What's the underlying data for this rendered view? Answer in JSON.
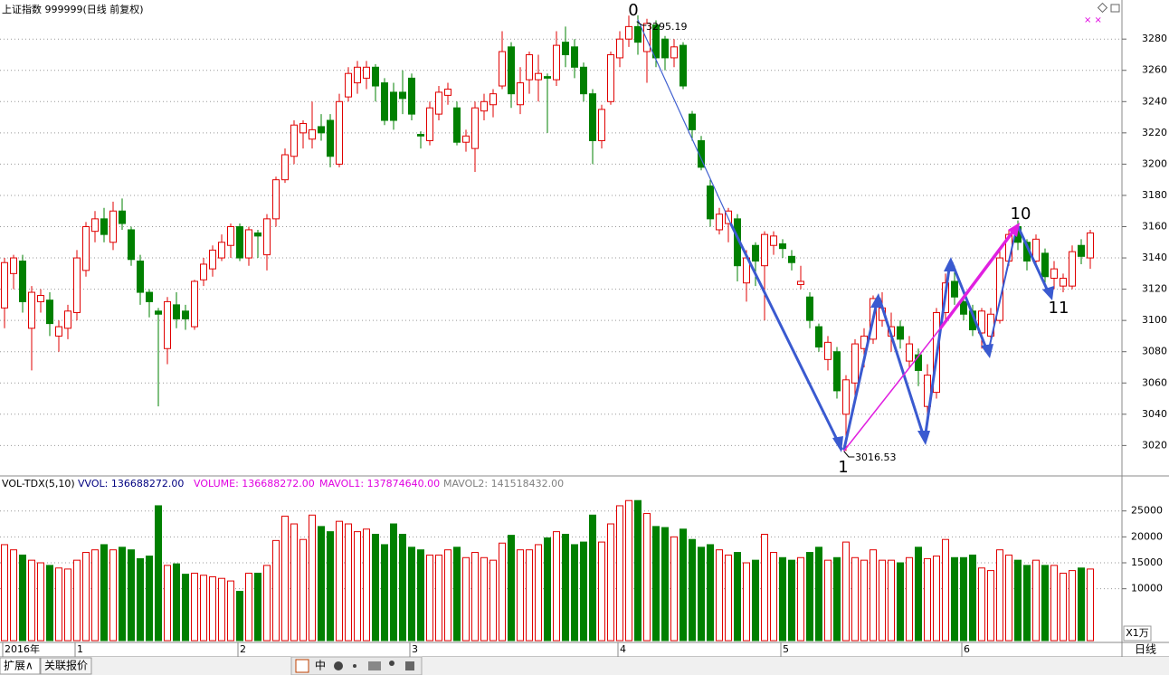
{
  "chart_data": {
    "type": "candlestick",
    "title": "上证指数 999999(日线 前复权)",
    "up_color": "#e00000",
    "down_color": "#008000",
    "grid": true,
    "ylim": [
      3004,
      3305
    ],
    "yticks": [
      3020,
      3040,
      3060,
      3080,
      3100,
      3120,
      3140,
      3160,
      3180,
      3200,
      3220,
      3240,
      3260,
      3280
    ],
    "categories": [
      "2016年",
      null,
      null,
      null,
      null,
      null,
      null,
      null,
      "1",
      null,
      null,
      null,
      null,
      null,
      null,
      null,
      null,
      null,
      null,
      null,
      null,
      null,
      null,
      null,
      null,
      null,
      "2",
      null,
      null,
      null,
      null,
      null,
      null,
      null,
      null,
      null,
      null,
      null,
      null,
      null,
      null,
      null,
      null,
      null,
      null,
      "3",
      null,
      null,
      null,
      null,
      null,
      null,
      null,
      null,
      null,
      null,
      null,
      null,
      null,
      null,
      null,
      null,
      null,
      null,
      null,
      null,
      null,
      null,
      "4",
      null,
      null,
      null,
      null,
      null,
      null,
      null,
      null,
      null,
      null,
      null,
      null,
      null,
      null,
      null,
      null,
      null,
      "5",
      null,
      null,
      null,
      null,
      null,
      null,
      null,
      null,
      null,
      null,
      null,
      null,
      null,
      null,
      null,
      null,
      null,
      null,
      null,
      "6",
      null,
      null,
      null,
      null,
      null,
      null,
      null,
      null,
      null,
      null,
      null,
      null,
      null,
      null
    ],
    "candles": [
      [
        3108,
        3140,
        3095,
        3137
      ],
      [
        3130,
        3142,
        3120,
        3140
      ],
      [
        3138,
        3142,
        3105,
        3112
      ],
      [
        3095,
        3122,
        3068,
        3118
      ],
      [
        3112,
        3120,
        3105,
        3116
      ],
      [
        3113,
        3118,
        3090,
        3098
      ],
      [
        3090,
        3100,
        3080,
        3096
      ],
      [
        3095,
        3110,
        3088,
        3106
      ],
      [
        3105,
        3145,
        3100,
        3140
      ],
      [
        3132,
        3163,
        3128,
        3160
      ],
      [
        3157,
        3170,
        3150,
        3165
      ],
      [
        3165,
        3172,
        3150,
        3155
      ],
      [
        3150,
        3176,
        3145,
        3170
      ],
      [
        3170,
        3178,
        3158,
        3162
      ],
      [
        3158,
        3160,
        3135,
        3139
      ],
      [
        3138,
        3142,
        3110,
        3118
      ],
      [
        3118,
        3120,
        3102,
        3112
      ],
      [
        3106,
        3108,
        3045,
        3104
      ],
      [
        3082,
        3115,
        3072,
        3112
      ],
      [
        3110,
        3118,
        3095,
        3101
      ],
      [
        3106,
        3110,
        3094,
        3101
      ],
      [
        3096,
        3126,
        3094,
        3125
      ],
      [
        3126,
        3140,
        3122,
        3136
      ],
      [
        3133,
        3148,
        3128,
        3145
      ],
      [
        3140,
        3155,
        3138,
        3150
      ],
      [
        3148,
        3162,
        3140,
        3160
      ],
      [
        3160,
        3162,
        3138,
        3140
      ],
      [
        3140,
        3160,
        3135,
        3158
      ],
      [
        3156,
        3158,
        3140,
        3154
      ],
      [
        3142,
        3168,
        3132,
        3165
      ],
      [
        3165,
        3192,
        3160,
        3190
      ],
      [
        3190,
        3210,
        3188,
        3206
      ],
      [
        3205,
        3228,
        3200,
        3225
      ],
      [
        3220,
        3228,
        3210,
        3226
      ],
      [
        3216,
        3240,
        3210,
        3222
      ],
      [
        3224,
        3232,
        3215,
        3220
      ],
      [
        3228,
        3232,
        3198,
        3205
      ],
      [
        3200,
        3245,
        3198,
        3240
      ],
      [
        3243,
        3262,
        3240,
        3258
      ],
      [
        3252,
        3266,
        3245,
        3262
      ],
      [
        3255,
        3266,
        3248,
        3262
      ],
      [
        3262,
        3264,
        3240,
        3250
      ],
      [
        3252,
        3255,
        3225,
        3228
      ],
      [
        3246,
        3252,
        3222,
        3228
      ],
      [
        3246,
        3260,
        3232,
        3242
      ],
      [
        3255,
        3258,
        3228,
        3232
      ],
      [
        3219,
        3221,
        3210,
        3218
      ],
      [
        3215,
        3240,
        3212,
        3236
      ],
      [
        3232,
        3250,
        3228,
        3246
      ],
      [
        3244,
        3252,
        3238,
        3248
      ],
      [
        3236,
        3240,
        3212,
        3214
      ],
      [
        3214,
        3222,
        3208,
        3218
      ],
      [
        3210,
        3240,
        3195,
        3236
      ],
      [
        3234,
        3245,
        3228,
        3240
      ],
      [
        3238,
        3248,
        3230,
        3245
      ],
      [
        3250,
        3285,
        3248,
        3272
      ],
      [
        3275,
        3278,
        3236,
        3245
      ],
      [
        3238,
        3262,
        3232,
        3252
      ],
      [
        3254,
        3272,
        3245,
        3270
      ],
      [
        3254,
        3270,
        3240,
        3258
      ],
      [
        3256,
        3258,
        3220,
        3255
      ],
      [
        3254,
        3285,
        3250,
        3276
      ],
      [
        3278,
        3288,
        3262,
        3270
      ],
      [
        3275,
        3280,
        3255,
        3262
      ],
      [
        3262,
        3265,
        3240,
        3245
      ],
      [
        3245,
        3248,
        3200,
        3215
      ],
      [
        3215,
        3238,
        3210,
        3235
      ],
      [
        3240,
        3272,
        3238,
        3270
      ],
      [
        3268,
        3285,
        3262,
        3280
      ],
      [
        3280,
        3295,
        3275,
        3288
      ],
      [
        3288,
        3295.19,
        3270,
        3278
      ],
      [
        3272,
        3293,
        3252,
        3290
      ],
      [
        3289,
        3292,
        3262,
        3268
      ],
      [
        3280,
        3282,
        3260,
        3268
      ],
      [
        3268,
        3280,
        3262,
        3275
      ],
      [
        3276,
        3278,
        3248,
        3250
      ],
      [
        3232,
        3234,
        3215,
        3222
      ],
      [
        3215,
        3218,
        3196,
        3198
      ],
      [
        3186,
        3190,
        3160,
        3165
      ],
      [
        3158,
        3172,
        3155,
        3168
      ],
      [
        3162,
        3172,
        3150,
        3170
      ],
      [
        3165,
        3168,
        3125,
        3135
      ],
      [
        3124,
        3145,
        3112,
        3140
      ],
      [
        3148,
        3150,
        3122,
        3138
      ],
      [
        3135,
        3157,
        3100,
        3155
      ],
      [
        3148,
        3157,
        3142,
        3154
      ],
      [
        3149,
        3152,
        3140,
        3146
      ],
      [
        3141,
        3145,
        3132,
        3137
      ],
      [
        3123,
        3135,
        3120,
        3125
      ],
      [
        3115,
        3118,
        3095,
        3100
      ],
      [
        3096,
        3098,
        3080,
        3083
      ],
      [
        3075,
        3090,
        3068,
        3086
      ],
      [
        3080,
        3083,
        3050,
        3055
      ],
      [
        3040,
        3065,
        3016.53,
        3062
      ],
      [
        3060,
        3088,
        3050,
        3085
      ],
      [
        3082,
        3095,
        3070,
        3090
      ],
      [
        3088,
        3116,
        3085,
        3114
      ],
      [
        3100,
        3118,
        3096,
        3108
      ],
      [
        3090,
        3105,
        3080,
        3096
      ],
      [
        3096,
        3100,
        3082,
        3088
      ],
      [
        3074,
        3090,
        3070,
        3085
      ],
      [
        3078,
        3082,
        3058,
        3068
      ],
      [
        3045,
        3072,
        3040,
        3065
      ],
      [
        3054,
        3108,
        3050,
        3105
      ],
      [
        3105,
        3130,
        3100,
        3124
      ],
      [
        3125,
        3135,
        3110,
        3115
      ],
      [
        3112,
        3115,
        3100,
        3104
      ],
      [
        3106,
        3110,
        3090,
        3094
      ],
      [
        3092,
        3108,
        3082,
        3106
      ],
      [
        3090,
        3108,
        3082,
        3104
      ],
      [
        3100,
        3145,
        3098,
        3140
      ],
      [
        3138,
        3158,
        3135,
        3155
      ],
      [
        3160,
        3164,
        3145,
        3150
      ],
      [
        3150,
        3152,
        3132,
        3138
      ],
      [
        3138,
        3155,
        3135,
        3152
      ],
      [
        3143,
        3146,
        3124,
        3128
      ],
      [
        3127,
        3138,
        3120,
        3133
      ],
      [
        3122,
        3130,
        3118,
        3127
      ],
      [
        3122,
        3148,
        3120,
        3144
      ],
      [
        3148,
        3152,
        3136,
        3141
      ],
      [
        3140,
        3158,
        3133,
        3156
      ]
    ],
    "volumes": [
      18500,
      17500,
      16500,
      15500,
      15000,
      14500,
      14000,
      13800,
      15500,
      17000,
      17500,
      18500,
      17500,
      18000,
      17500,
      15800,
      16300,
      26000,
      14500,
      14800,
      12800,
      13000,
      12600,
      12300,
      12000,
      11500,
      9500,
      13000,
      13000,
      14500,
      19300,
      24000,
      22500,
      19500,
      24200,
      22000,
      21000,
      23000,
      22500,
      21000,
      21500,
      20500,
      18500,
      22500,
      20500,
      18000,
      17500,
      16500,
      16500,
      17500,
      18000,
      16000,
      17000,
      16000,
      15500,
      18800,
      20300,
      17500,
      17500,
      18500,
      19800,
      21000,
      20500,
      18500,
      19000,
      24200,
      19000,
      22500,
      26000,
      27000,
      27000,
      24500,
      22000,
      21800,
      20000,
      21500,
      19500,
      18000,
      18500,
      17500,
      16500,
      17000,
      15000,
      15500,
      20500,
      17000,
      16000,
      15500,
      16000,
      17000,
      18000,
      15500,
      16000,
      19000,
      16000,
      15500,
      17500,
      15500,
      15500,
      15000,
      16000,
      18000,
      15800,
      16300,
      19500,
      16000,
      16000,
      16500,
      14000,
      13500,
      17500,
      16500,
      15500,
      14500,
      15500,
      14500,
      14500,
      13000,
      13500,
      14000,
      13800
    ],
    "volume_ylim": [
      0,
      31400
    ],
    "volume_yticks": [
      10000,
      15000,
      20000,
      25000
    ],
    "volume_title": "VOL-TDX(5,10)",
    "volume_stats": [
      "VVOL: 136688272.00",
      "VOLUME: 136688272.00",
      "MAVOL1: 137874640.00",
      "MAVOL2: 141518432.00"
    ],
    "volume_unit": "X1万",
    "period": "日线",
    "wave_labels": [
      "0",
      "1",
      "10",
      "11"
    ]
  },
  "tabs": [
    "扩展∧",
    "关联报价"
  ],
  "toolbar": [
    "中"
  ]
}
